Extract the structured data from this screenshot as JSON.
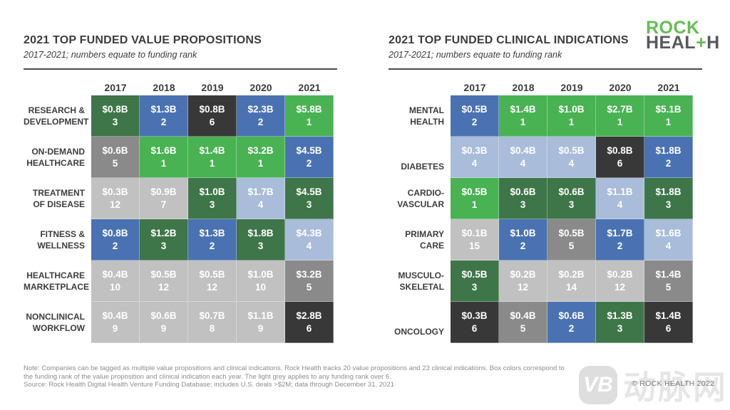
{
  "logo": {
    "line1": "ROCK",
    "heal": "HEAL",
    "plus": "+",
    "h": "H"
  },
  "rank_colors": {
    "1": "#49b253",
    "2": "#4a72b2",
    "3": "#3e7549",
    "4": "#a9bcd9",
    "5": "#8a8a8a",
    "6": "#383838",
    "over6": "#c1c1c1"
  },
  "chart_data": [
    {
      "type": "heatmap",
      "title": "2021 TOP FUNDED VALUE PROPOSITIONS",
      "subtitle": "2017-2021; numbers equate to funding rank",
      "x": [
        "2017",
        "2018",
        "2019",
        "2020",
        "2021"
      ],
      "value_note": "cell = funding amount ($B) and funding rank; box color corresponds to rank, light grey = rank over 6",
      "rows": [
        {
          "label": "RESEARCH &\nDEVELOPMENT",
          "cells": [
            {
              "amount": "$0.8B",
              "rank": 3
            },
            {
              "amount": "$1.3B",
              "rank": 2
            },
            {
              "amount": "$0.8B",
              "rank": 6
            },
            {
              "amount": "$2.3B",
              "rank": 2
            },
            {
              "amount": "$5.8B",
              "rank": 1
            }
          ]
        },
        {
          "label": "ON-DEMAND\nHEALTHCARE",
          "cells": [
            {
              "amount": "$0.6B",
              "rank": 5
            },
            {
              "amount": "$1.6B",
              "rank": 1
            },
            {
              "amount": "$1.4B",
              "rank": 1
            },
            {
              "amount": "$3.2B",
              "rank": 1
            },
            {
              "amount": "$4.5B",
              "rank": 2
            }
          ]
        },
        {
          "label": "TREATMENT\nOF DISEASE",
          "cells": [
            {
              "amount": "$0.3B",
              "rank": 12
            },
            {
              "amount": "$0.9B",
              "rank": 7
            },
            {
              "amount": "$1.0B",
              "rank": 3
            },
            {
              "amount": "$1.7B",
              "rank": 4
            },
            {
              "amount": "$4.5B",
              "rank": 3
            }
          ]
        },
        {
          "label": "FITNESS &\nWELLNESS",
          "cells": [
            {
              "amount": "$0.8B",
              "rank": 2
            },
            {
              "amount": "$1.2B",
              "rank": 3
            },
            {
              "amount": "$1.3B",
              "rank": 2
            },
            {
              "amount": "$1.8B",
              "rank": 3
            },
            {
              "amount": "$4.3B",
              "rank": 4
            }
          ]
        },
        {
          "label": "HEALTHCARE\nMARKETPLACE",
          "cells": [
            {
              "amount": "$0.4B",
              "rank": 10
            },
            {
              "amount": "$0.5B",
              "rank": 12
            },
            {
              "amount": "$0.5B",
              "rank": 12
            },
            {
              "amount": "$1.0B",
              "rank": 10
            },
            {
              "amount": "$3.2B",
              "rank": 5
            }
          ]
        },
        {
          "label": "NONCLINICAL\nWORKFLOW",
          "cells": [
            {
              "amount": "$0.4B",
              "rank": 9
            },
            {
              "amount": "$0.6B",
              "rank": 9
            },
            {
              "amount": "$0.7B",
              "rank": 8
            },
            {
              "amount": "$1.1B",
              "rank": 9
            },
            {
              "amount": "$2.8B",
              "rank": 6
            }
          ]
        }
      ]
    },
    {
      "type": "heatmap",
      "title": "2021 TOP FUNDED CLINICAL INDICATIONS",
      "subtitle": "2017-2021; numbers equate to funding rank",
      "x": [
        "2017",
        "2018",
        "2019",
        "2020",
        "2021"
      ],
      "value_note": "cell = funding amount ($B) and funding rank; box color corresponds to rank, light grey = rank over 6",
      "rows": [
        {
          "label": "MENTAL\nHEALTH",
          "cells": [
            {
              "amount": "$0.5B",
              "rank": 2
            },
            {
              "amount": "$1.4B",
              "rank": 1
            },
            {
              "amount": "$1.0B",
              "rank": 1
            },
            {
              "amount": "$2.7B",
              "rank": 1
            },
            {
              "amount": "$5.1B",
              "rank": 1
            }
          ]
        },
        {
          "label": "DIABETES",
          "cells": [
            {
              "amount": "$0.3B",
              "rank": 4
            },
            {
              "amount": "$0.4B",
              "rank": 4
            },
            {
              "amount": "$0.5B",
              "rank": 4
            },
            {
              "amount": "$0.8B",
              "rank": 6
            },
            {
              "amount": "$1.8B",
              "rank": 2
            }
          ]
        },
        {
          "label": "CARDIO-\nVASCULAR",
          "cells": [
            {
              "amount": "$0.5B",
              "rank": 1
            },
            {
              "amount": "$0.6B",
              "rank": 3
            },
            {
              "amount": "$0.6B",
              "rank": 3
            },
            {
              "amount": "$1.1B",
              "rank": 4
            },
            {
              "amount": "$1.8B",
              "rank": 3
            }
          ]
        },
        {
          "label": "PRIMARY\nCARE",
          "cells": [
            {
              "amount": "$0.1B",
              "rank": 15
            },
            {
              "amount": "$1.0B",
              "rank": 2
            },
            {
              "amount": "$0.5B",
              "rank": 5
            },
            {
              "amount": "$1.7B",
              "rank": 2
            },
            {
              "amount": "$1.6B",
              "rank": 4
            }
          ]
        },
        {
          "label": "MUSCULO-\nSKELETAL",
          "cells": [
            {
              "amount": "$0.5B",
              "rank": 3
            },
            {
              "amount": "$0.2B",
              "rank": 12
            },
            {
              "amount": "$0.2B",
              "rank": 14
            },
            {
              "amount": "$0.2B",
              "rank": 12
            },
            {
              "amount": "$1.4B",
              "rank": 5
            }
          ]
        },
        {
          "label": "ONCOLOGY",
          "cells": [
            {
              "amount": "$0.3B",
              "rank": 6
            },
            {
              "amount": "$0.4B",
              "rank": 5
            },
            {
              "amount": "$0.6B",
              "rank": 2
            },
            {
              "amount": "$1.3B",
              "rank": 3
            },
            {
              "amount": "$1.4B",
              "rank": 6
            }
          ]
        }
      ]
    }
  ],
  "footnote": {
    "line1": "Note: Companies can be tagged as multiple value propositions and clinical indications. Rock Health tracks 20 value propositions and 23 clinical indications. Box colors correspond to",
    "line2": "the funding rank of the value proposition and clinical indication each year. The light grey applies to any funding rank over 6.",
    "line3": "Source: Rock Health Digital Health Venture Funding Database; includes U.S. deals >$2M; data through December 31, 2021"
  },
  "watermark": {
    "vb": "VB",
    "text": "动脉网"
  },
  "copyright": "© ROCK HEALTH 2022"
}
